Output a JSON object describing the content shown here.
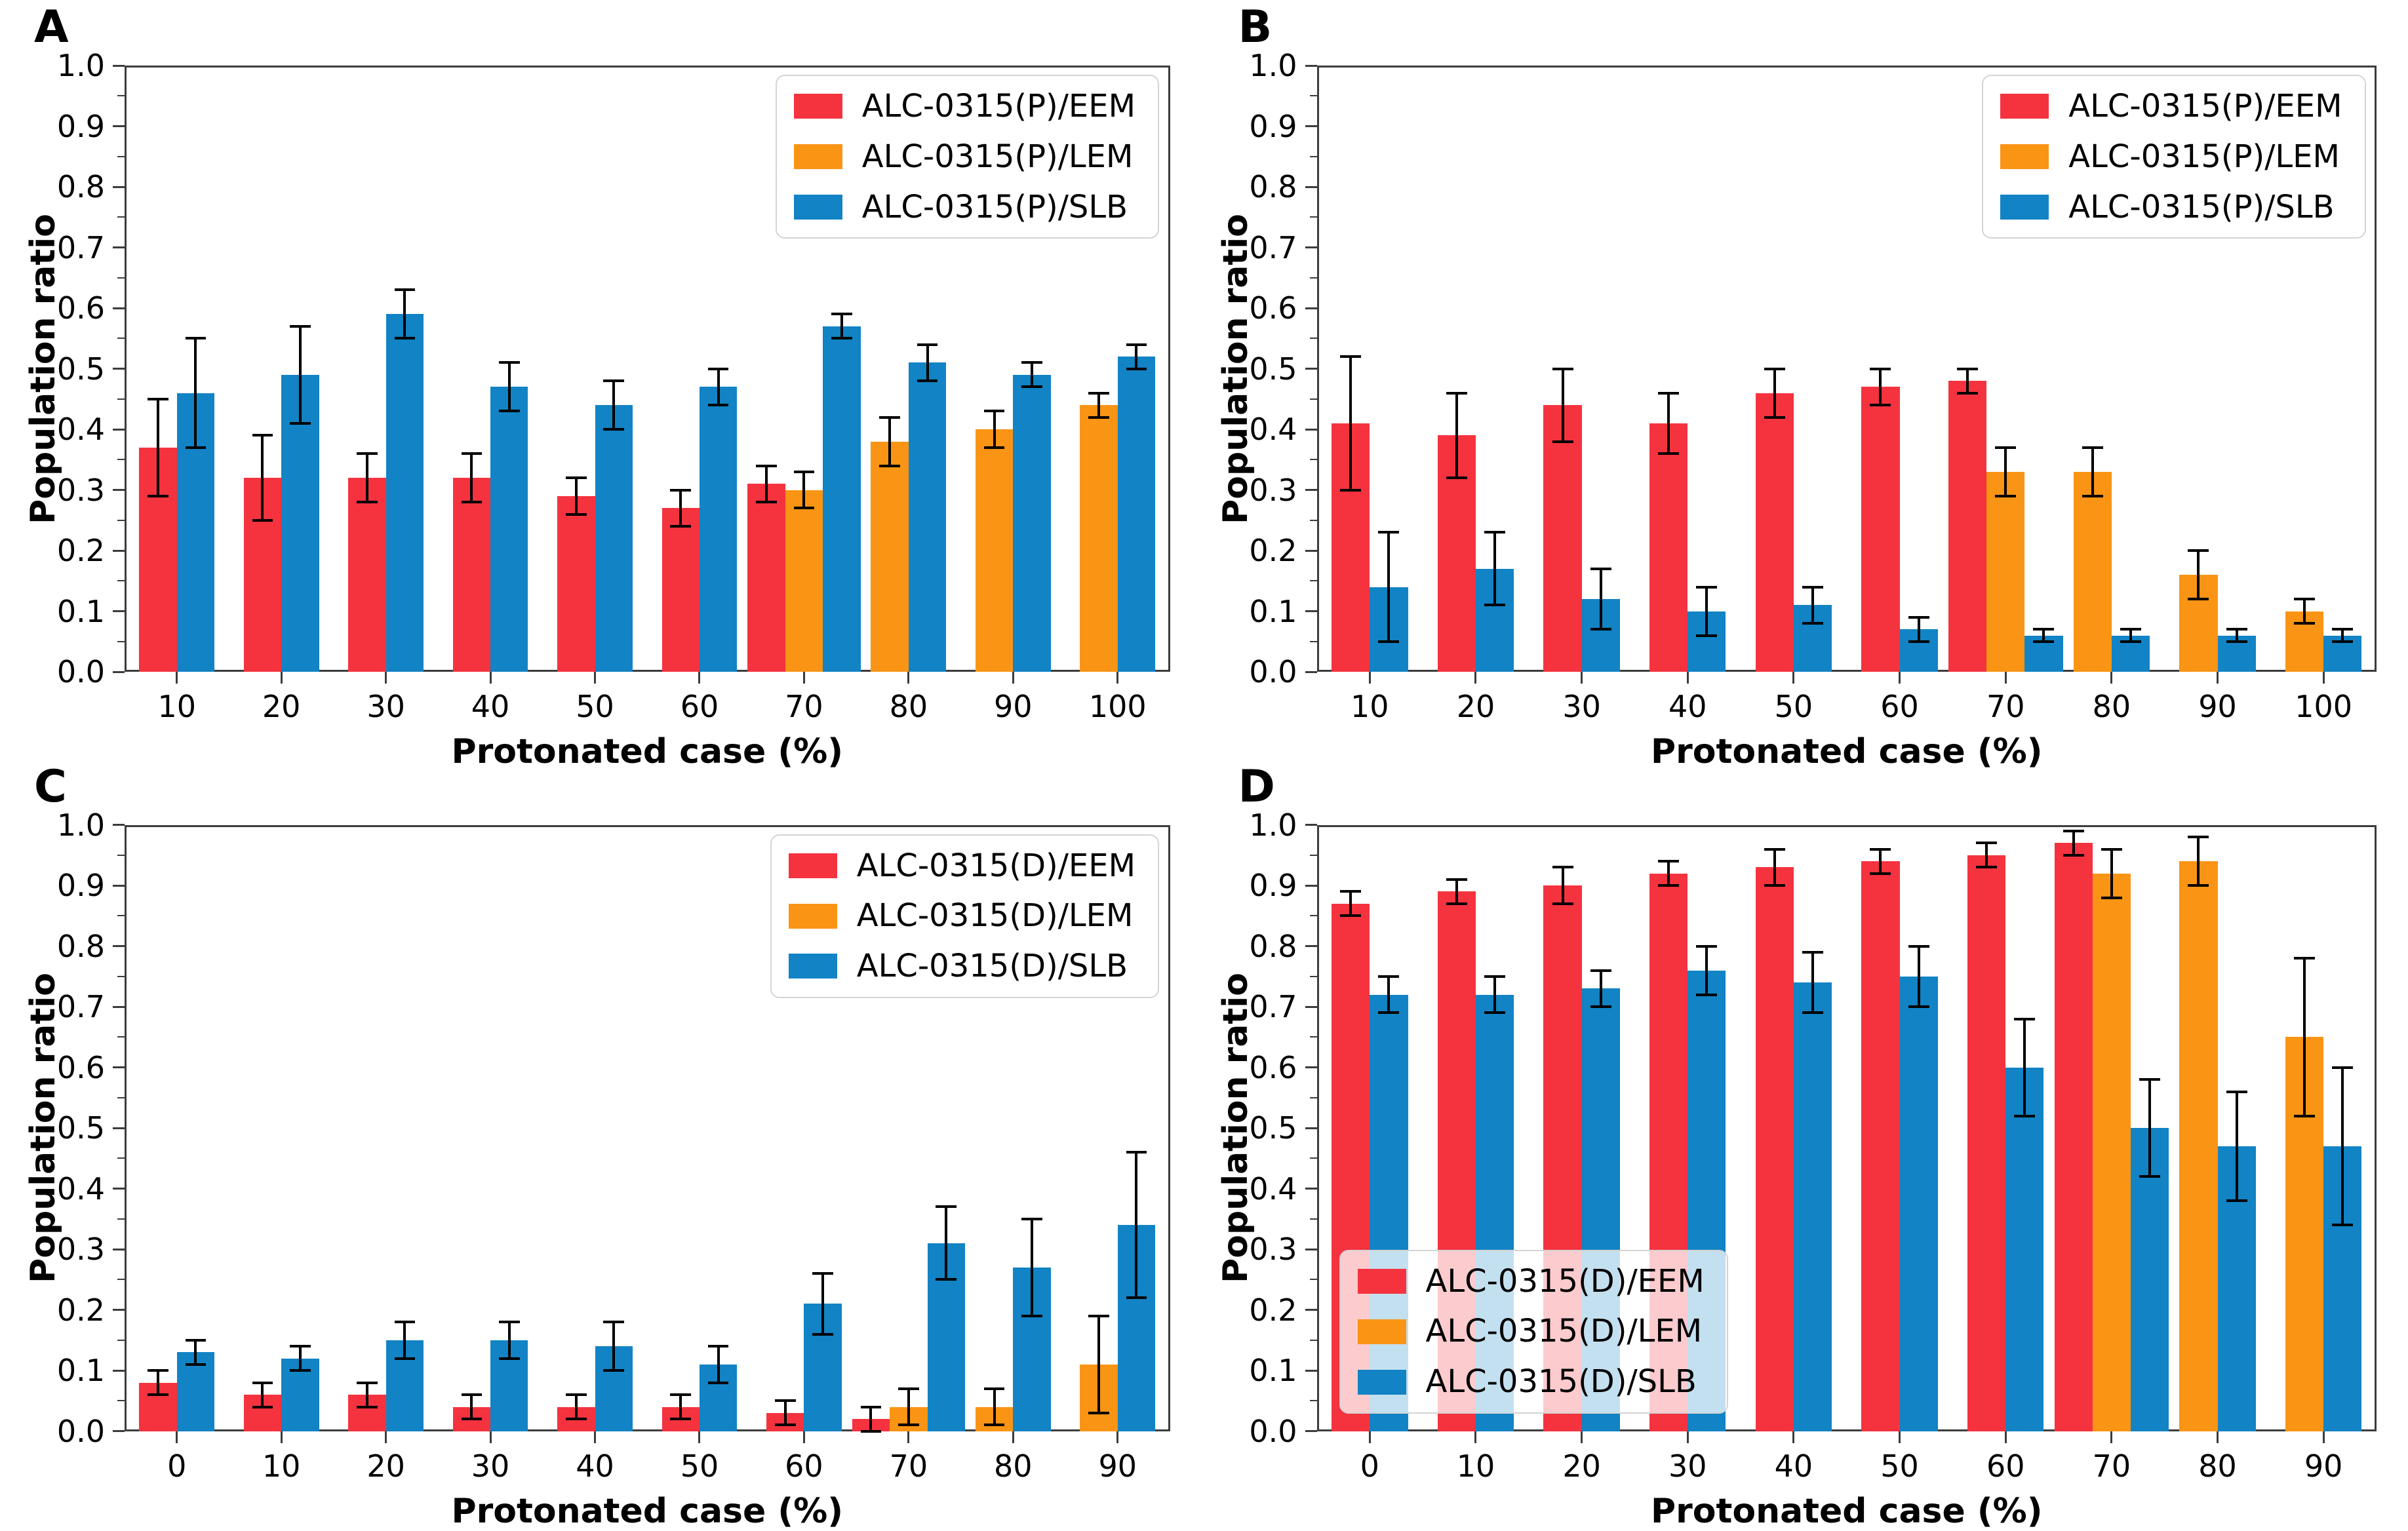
{
  "style": {
    "background": "#ffffff",
    "axis_color": "#3c3c3c",
    "error_bar_color": "#000000",
    "legend_border_color": "#d4d4d4",
    "colors": {
      "EEM": "#F4333F",
      "LEM": "#FA9414",
      "SLB": "#1283C4"
    }
  },
  "chart_data": [
    {
      "type": "bar",
      "panel_label": "A",
      "xlabel": "Protonated case (%)",
      "ylabel": "Population ratio",
      "ylim": [
        0.0,
        1.0
      ],
      "ytick_step": 0.1,
      "grid": false,
      "legend_position": "top-right",
      "legend_opaque": true,
      "categories": [
        "10",
        "20",
        "30",
        "40",
        "50",
        "60",
        "70",
        "80",
        "90",
        "100"
      ],
      "series": [
        {
          "name": "ALC-0315(P)/EEM",
          "color": "EEM",
          "values": [
            0.37,
            0.32,
            0.32,
            0.32,
            0.29,
            0.27,
            0.31,
            null,
            null,
            null
          ],
          "errors": [
            0.08,
            0.07,
            0.04,
            0.04,
            0.03,
            0.03,
            0.03,
            null,
            null,
            null
          ]
        },
        {
          "name": "ALC-0315(P)/LEM",
          "color": "LEM",
          "values": [
            null,
            null,
            null,
            null,
            null,
            null,
            0.3,
            0.38,
            0.4,
            0.44
          ],
          "errors": [
            null,
            null,
            null,
            null,
            null,
            null,
            0.03,
            0.04,
            0.03,
            0.02
          ]
        },
        {
          "name": "ALC-0315(P)/SLB",
          "color": "SLB",
          "values": [
            0.46,
            0.49,
            0.59,
            0.47,
            0.44,
            0.47,
            0.57,
            0.51,
            0.49,
            0.52
          ],
          "errors": [
            0.09,
            0.08,
            0.04,
            0.04,
            0.04,
            0.03,
            0.02,
            0.03,
            0.02,
            0.02
          ]
        }
      ]
    },
    {
      "type": "bar",
      "panel_label": "B",
      "xlabel": "Protonated case (%)",
      "ylabel": "Population ratio",
      "ylim": [
        0.0,
        1.0
      ],
      "ytick_step": 0.1,
      "grid": false,
      "legend_position": "top-right",
      "legend_opaque": true,
      "categories": [
        "10",
        "20",
        "30",
        "40",
        "50",
        "60",
        "70",
        "80",
        "90",
        "100"
      ],
      "series": [
        {
          "name": "ALC-0315(P)/EEM",
          "color": "EEM",
          "values": [
            0.41,
            0.39,
            0.44,
            0.41,
            0.46,
            0.47,
            0.48,
            null,
            null,
            null
          ],
          "errors": [
            0.11,
            0.07,
            0.06,
            0.05,
            0.04,
            0.03,
            0.02,
            null,
            null,
            null
          ]
        },
        {
          "name": "ALC-0315(P)/LEM",
          "color": "LEM",
          "values": [
            null,
            null,
            null,
            null,
            null,
            null,
            0.33,
            0.33,
            0.16,
            0.1
          ],
          "errors": [
            null,
            null,
            null,
            null,
            null,
            null,
            0.04,
            0.04,
            0.04,
            0.02
          ]
        },
        {
          "name": "ALC-0315(P)/SLB",
          "color": "SLB",
          "values": [
            0.14,
            0.17,
            0.12,
            0.1,
            0.11,
            0.07,
            0.06,
            0.06,
            0.06,
            0.06
          ],
          "errors": [
            0.09,
            0.06,
            0.05,
            0.04,
            0.03,
            0.02,
            0.01,
            0.01,
            0.01,
            0.01
          ]
        }
      ]
    },
    {
      "type": "bar",
      "panel_label": "C",
      "xlabel": "Protonated case (%)",
      "ylabel": "Population ratio",
      "ylim": [
        0.0,
        1.0
      ],
      "ytick_step": 0.1,
      "grid": false,
      "legend_position": "top-right",
      "legend_opaque": true,
      "categories": [
        "0",
        "10",
        "20",
        "30",
        "40",
        "50",
        "60",
        "70",
        "80",
        "90"
      ],
      "series": [
        {
          "name": "ALC-0315(D)/EEM",
          "color": "EEM",
          "values": [
            0.08,
            0.06,
            0.06,
            0.04,
            0.04,
            0.04,
            0.03,
            0.02,
            null,
            null
          ],
          "errors": [
            0.02,
            0.02,
            0.02,
            0.02,
            0.02,
            0.02,
            0.02,
            0.02,
            null,
            null
          ]
        },
        {
          "name": "ALC-0315(D)/LEM",
          "color": "LEM",
          "values": [
            null,
            null,
            null,
            null,
            null,
            null,
            null,
            0.04,
            0.04,
            0.11
          ],
          "errors": [
            null,
            null,
            null,
            null,
            null,
            null,
            null,
            0.03,
            0.03,
            0.08
          ]
        },
        {
          "name": "ALC-0315(D)/SLB",
          "color": "SLB",
          "values": [
            0.13,
            0.12,
            0.15,
            0.15,
            0.14,
            0.11,
            0.21,
            0.31,
            0.27,
            0.34
          ],
          "errors": [
            0.02,
            0.02,
            0.03,
            0.03,
            0.04,
            0.03,
            0.05,
            0.06,
            0.08,
            0.12
          ]
        }
      ]
    },
    {
      "type": "bar",
      "panel_label": "D",
      "xlabel": "Protonated case (%)",
      "ylabel": "Population ratio",
      "ylim": [
        0.0,
        1.0
      ],
      "ytick_step": 0.1,
      "grid": false,
      "legend_position": "bottom-left",
      "legend_opaque": false,
      "categories": [
        "0",
        "10",
        "20",
        "30",
        "40",
        "50",
        "60",
        "70",
        "80",
        "90"
      ],
      "series": [
        {
          "name": "ALC-0315(D)/EEM",
          "color": "EEM",
          "values": [
            0.87,
            0.89,
            0.9,
            0.92,
            0.93,
            0.94,
            0.95,
            0.97,
            null,
            null
          ],
          "errors": [
            0.02,
            0.02,
            0.03,
            0.02,
            0.03,
            0.02,
            0.02,
            0.02,
            null,
            null
          ]
        },
        {
          "name": "ALC-0315(D)/LEM",
          "color": "LEM",
          "values": [
            null,
            null,
            null,
            null,
            null,
            null,
            null,
            0.92,
            0.94,
            0.65
          ],
          "errors": [
            null,
            null,
            null,
            null,
            null,
            null,
            null,
            0.04,
            0.04,
            0.13
          ]
        },
        {
          "name": "ALC-0315(D)/SLB",
          "color": "SLB",
          "values": [
            0.72,
            0.72,
            0.73,
            0.76,
            0.74,
            0.75,
            0.6,
            0.5,
            0.47,
            0.47
          ],
          "errors": [
            0.03,
            0.03,
            0.03,
            0.04,
            0.05,
            0.05,
            0.08,
            0.08,
            0.09,
            0.13
          ]
        }
      ]
    }
  ]
}
